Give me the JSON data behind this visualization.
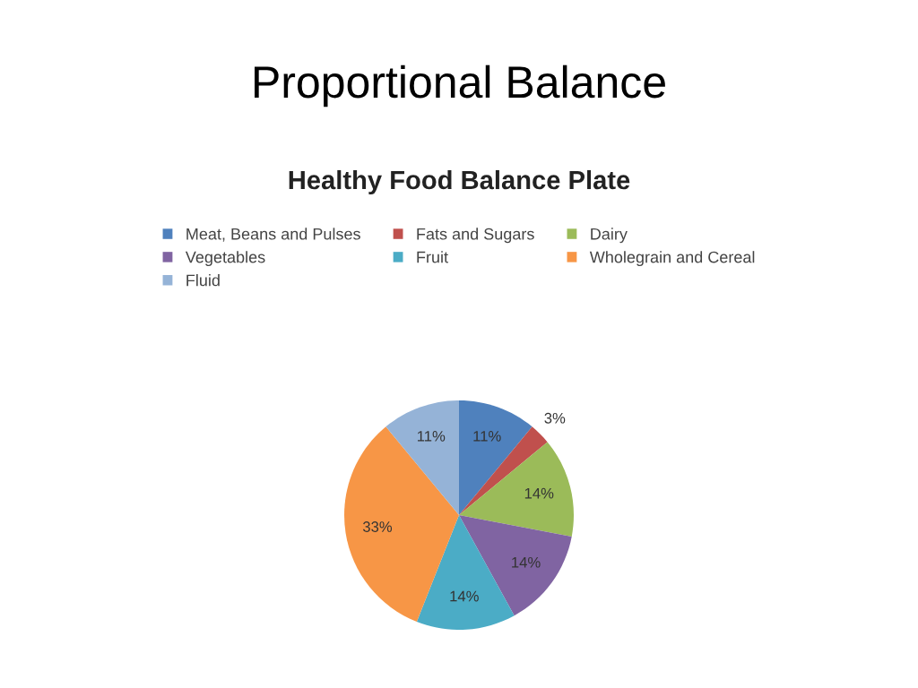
{
  "chart_data": {
    "type": "pie",
    "title": "Proportional Balance",
    "subtitle": "Healthy Food Balance Plate",
    "categories": [
      "Meat, Beans and Pulses",
      "Fats and Sugars",
      "Dairy",
      "Vegetables",
      "Fruit",
      "Wholegrain and Cereal",
      "Fluid"
    ],
    "values": [
      11,
      3,
      14,
      14,
      14,
      33,
      11
    ],
    "colors": [
      "#4f81bd",
      "#c0504d",
      "#9bbb59",
      "#8064a2",
      "#4bacc6",
      "#f79646",
      "#95b3d7"
    ],
    "value_labels": [
      "11%",
      "3%",
      "14%",
      "14%",
      "14%",
      "33%",
      "11%"
    ],
    "legend": "top"
  }
}
